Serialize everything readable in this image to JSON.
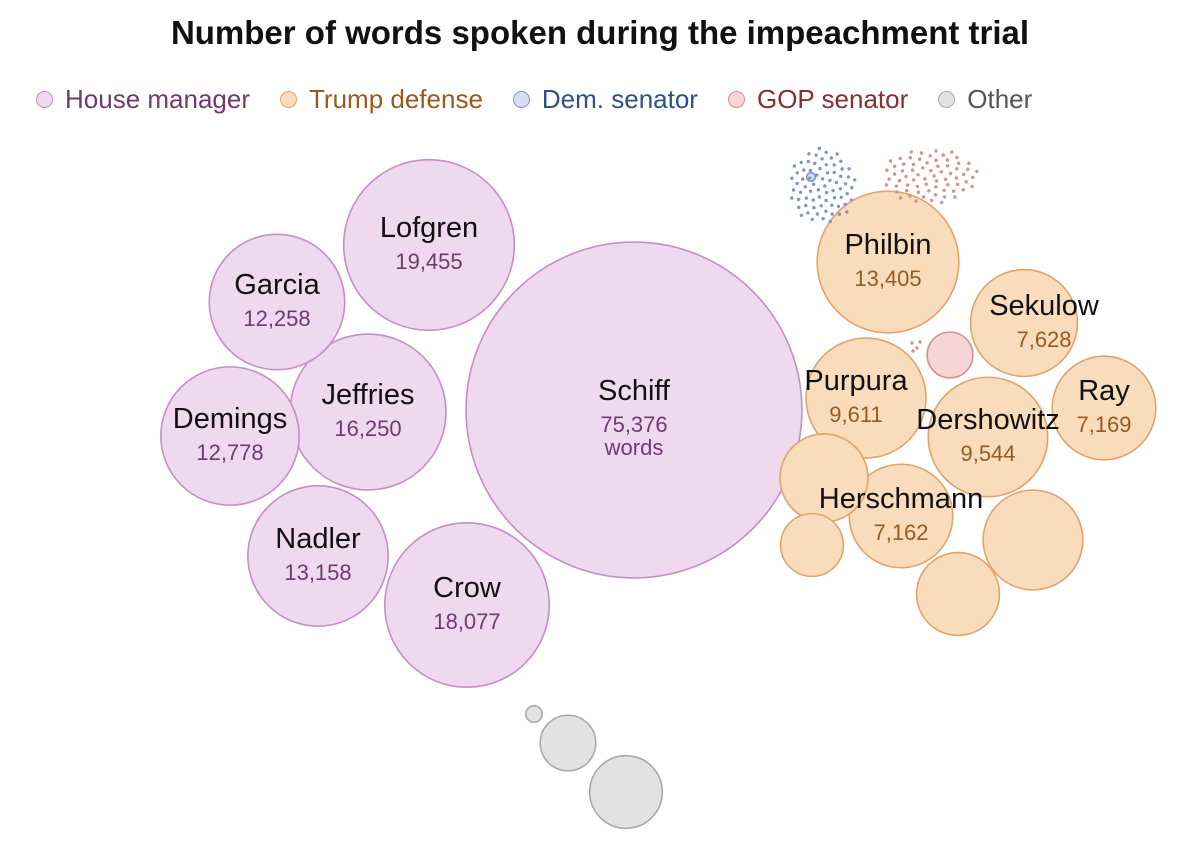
{
  "chart_data": {
    "type": "bubble",
    "title": "Number of words spoken during the impeachment trial",
    "unit_label": "words",
    "legend_position": "top",
    "categories": [
      {
        "key": "house",
        "label": "House manager",
        "fill": "#efd9ee",
        "stroke": "#c78dc6",
        "text": "#6f3a72"
      },
      {
        "key": "defense",
        "label": "Trump defense",
        "fill": "#f8dcbc",
        "stroke": "#e0a46b",
        "text": "#9a5a1f"
      },
      {
        "key": "dem",
        "label": "Dem. senator",
        "fill": "#d4def0",
        "stroke": "#7f96c5",
        "text": "#2f4f86"
      },
      {
        "key": "gop",
        "label": "GOP senator",
        "fill": "#f6d5d6",
        "stroke": "#d98e92",
        "text": "#8a2e2e"
      },
      {
        "key": "other",
        "label": "Other",
        "fill": "#e2e2e2",
        "stroke": "#a9a9a9",
        "text": "#555555"
      }
    ],
    "speakers": [
      {
        "name": "Schiff",
        "value": 75376,
        "display": "75,376",
        "category": "house"
      },
      {
        "name": "Lofgren",
        "value": 19455,
        "display": "19,455",
        "category": "house"
      },
      {
        "name": "Crow",
        "value": 18077,
        "display": "18,077",
        "category": "house"
      },
      {
        "name": "Jeffries",
        "value": 16250,
        "display": "16,250",
        "category": "house"
      },
      {
        "name": "Nadler",
        "value": 13158,
        "display": "13,158",
        "category": "house"
      },
      {
        "name": "Demings",
        "value": 12778,
        "display": "12,778",
        "category": "house"
      },
      {
        "name": "Garcia",
        "value": 12258,
        "display": "12,258",
        "category": "house"
      },
      {
        "name": "Philbin",
        "value": 13405,
        "display": "13,405",
        "category": "defense"
      },
      {
        "name": "Purpura",
        "value": 9611,
        "display": "9,611",
        "category": "defense"
      },
      {
        "name": "Dershowitz",
        "value": 9544,
        "display": "9,544",
        "category": "defense"
      },
      {
        "name": "Sekulow",
        "value": 7628,
        "display": "7,628",
        "category": "defense"
      },
      {
        "name": "Ray",
        "value": 7169,
        "display": "7,169",
        "category": "defense"
      },
      {
        "name": "Herschmann",
        "value": 7162,
        "display": "7,162",
        "category": "defense"
      },
      {
        "name": "",
        "value": 6650,
        "display": "",
        "category": "defense"
      },
      {
        "name": "",
        "value": 5180,
        "display": "",
        "category": "defense"
      },
      {
        "name": "",
        "value": 4590,
        "display": "",
        "category": "defense"
      },
      {
        "name": "",
        "value": 2630,
        "display": "",
        "category": "defense"
      },
      {
        "name": "",
        "value": 1400,
        "display": "",
        "category": "gop"
      },
      {
        "name": "",
        "value": 50,
        "display": "",
        "category": "dem"
      },
      {
        "name": "",
        "value": 3520,
        "display": "",
        "category": "other"
      },
      {
        "name": "",
        "value": 2060,
        "display": "",
        "category": "other"
      },
      {
        "name": "",
        "value": 180,
        "display": "",
        "category": "other"
      }
    ],
    "minor_speakers": [
      {
        "category": "dem",
        "count": 72
      },
      {
        "category": "gop",
        "count": 70
      }
    ]
  }
}
